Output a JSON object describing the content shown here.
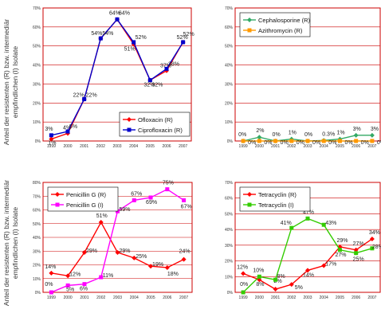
{
  "y_axis_title_top": [
    "Anteil der resistenten (R) bzw. intermediär",
    "empfindlichen (I) Isolate"
  ],
  "y_axis_title_bottom": [
    "Anteil der resistenten (R) bzw. intermediär",
    "empfindlichen (I) Isolate"
  ],
  "colors": {
    "frame": "#cc0000",
    "grid": "#cc0000",
    "red": "#ff0000",
    "blue": "#0000cc",
    "green": "#33cc00",
    "orange": "#ff9900",
    "teal": "#33aa66",
    "magenta": "#ff00ff"
  },
  "chart_data": [
    {
      "type": "line",
      "id": "p1",
      "x": [
        "1999",
        "2000",
        "2001",
        "2002",
        "2003",
        "2004",
        "2005",
        "2006",
        "2007"
      ],
      "ylim": [
        0,
        70
      ],
      "yticks": [
        "0%",
        "10%",
        "20%",
        "30%",
        "40%",
        "50%",
        "60%",
        "70%"
      ],
      "legend_position": "bottom-right",
      "series": [
        {
          "name": "Ofloxacin (R)",
          "color": "#ff0000",
          "marker": "diamond",
          "values": [
            1,
            4,
            22,
            54,
            64,
            51,
            32,
            37,
            52
          ],
          "labels": [
            "1%",
            "4%",
            "22%",
            "54%",
            "64%",
            "51%",
            "32%",
            "37%",
            "52%"
          ]
        },
        {
          "name": "Ciprofloxacin (R)",
          "color": "#0000cc",
          "marker": "square",
          "values": [
            3,
            5,
            22,
            54,
            64,
            52,
            32,
            38,
            52
          ],
          "labels": [
            "3%",
            "5%",
            "22%",
            "54%",
            "64%",
            "52%",
            "32%",
            "38%",
            "52%"
          ]
        }
      ]
    },
    {
      "type": "line",
      "id": "p2",
      "x": [
        "1999",
        "2000",
        "2001",
        "2002",
        "2003",
        "2004",
        "2005",
        "2006",
        "2007"
      ],
      "ylim": [
        0,
        70
      ],
      "yticks": [
        "0%",
        "10%",
        "20%",
        "30%",
        "40%",
        "50%",
        "60%",
        "70%"
      ],
      "legend_position": "top-left",
      "series": [
        {
          "name": "Cephalosporine (R)",
          "color": "#33aa66",
          "marker": "diamond",
          "values": [
            0,
            2,
            0,
            1,
            0,
            0.3,
            1,
            3,
            3
          ],
          "labels": [
            "0%",
            "2%",
            "0%",
            "1%",
            "0%",
            "0.3%",
            "1%",
            "3%",
            "3%"
          ]
        },
        {
          "name": "Azithromycin (R)",
          "color": "#ff9900",
          "marker": "square",
          "values": [
            0,
            0,
            0,
            0,
            0,
            0,
            0,
            0,
            0
          ],
          "labels": [
            "0%",
            "0%",
            "0%",
            "0%",
            "0%",
            "0%",
            "0%",
            "0%",
            "0%"
          ]
        }
      ]
    },
    {
      "type": "line",
      "id": "p3",
      "x": [
        "1999",
        "2000",
        "2001",
        "2002",
        "2003",
        "2004",
        "2005",
        "2006",
        "2007"
      ],
      "ylim": [
        0,
        80
      ],
      "yticks": [
        "0%",
        "10%",
        "20%",
        "30%",
        "40%",
        "50%",
        "60%",
        "70%",
        "80%"
      ],
      "legend_position": "top-left",
      "series": [
        {
          "name": "Penicillin G (R)",
          "color": "#ff0000",
          "marker": "diamond",
          "values": [
            14,
            12,
            29,
            51,
            29,
            25,
            19,
            18,
            24
          ],
          "labels": [
            "14%",
            "12%",
            "29%",
            "51%",
            "29%",
            "25%",
            "19%",
            "18%",
            "24%"
          ]
        },
        {
          "name": "Penicillin G (I)",
          "color": "#ff00ff",
          "marker": "square",
          "values": [
            0,
            5,
            6,
            11,
            59,
            67,
            69,
            75,
            67
          ],
          "labels": [
            "0%",
            "5%",
            "6%",
            "11%",
            "59%",
            "67%",
            "69%",
            "75%",
            "67%"
          ]
        }
      ]
    },
    {
      "type": "line",
      "id": "p4",
      "x": [
        "1999",
        "2000",
        "2001",
        "2002",
        "2003",
        "2004",
        "2005",
        "2006",
        "2007"
      ],
      "ylim": [
        0,
        70
      ],
      "yticks": [
        "0%",
        "10%",
        "20%",
        "30%",
        "40%",
        "50%",
        "60%",
        "70%"
      ],
      "legend_position": "top-left",
      "series": [
        {
          "name": "Tetracyclin (R)",
          "color": "#ff0000",
          "marker": "diamond",
          "values": [
            12,
            8,
            2,
            5,
            14,
            17,
            29,
            27,
            34
          ],
          "labels": [
            "12%",
            "8%",
            "2%",
            "5%",
            "14%",
            "17%",
            "29%",
            "27%",
            "34%"
          ]
        },
        {
          "name": "Tetracyclin (I)",
          "color": "#33cc00",
          "marker": "square",
          "values": [
            0,
            10,
            8,
            41,
            47,
            43,
            27,
            25,
            28
          ],
          "labels": [
            "0%",
            "10%",
            "8%",
            "41%",
            "47%",
            "43%",
            "27%",
            "25%",
            "28%"
          ]
        }
      ]
    }
  ]
}
